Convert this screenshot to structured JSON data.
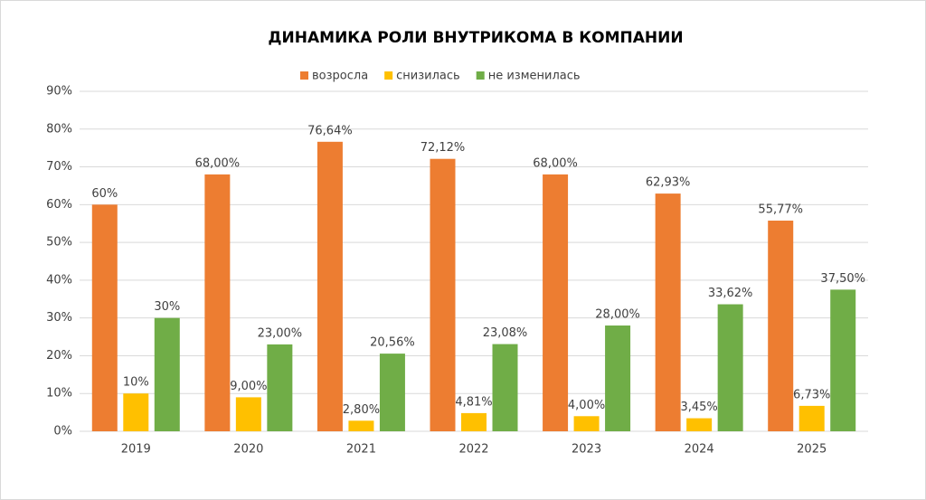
{
  "chart_data": {
    "type": "bar",
    "title": "ДИНАМИКА РОЛИ ВНУТРИКОМА В КОМПАНИИ",
    "categories": [
      "2019",
      "2020",
      "2021",
      "2022",
      "2023",
      "2024",
      "2025"
    ],
    "series": [
      {
        "name": "возросла",
        "color": "#ed7d31",
        "values": [
          60,
          68,
          76.64,
          72.12,
          68,
          62.93,
          55.77
        ],
        "value_labels": [
          "60%",
          "68,00%",
          "76,64%",
          "72,12%",
          "68,00%",
          "62,93%",
          "55,77%"
        ]
      },
      {
        "name": "снизилась",
        "color": "#ffc000",
        "values": [
          10,
          9,
          2.8,
          4.81,
          4,
          3.45,
          6.73
        ],
        "value_labels": [
          "10%",
          "9,00%",
          "2,80%",
          "4,81%",
          "4,00%",
          "3,45%",
          "6,73%"
        ]
      },
      {
        "name": "не изменилась",
        "color": "#70ad47",
        "values": [
          30,
          23,
          20.56,
          23.08,
          28,
          33.62,
          37.5
        ],
        "value_labels": [
          "30%",
          "23,00%",
          "20,56%",
          "23,08%",
          "28,00%",
          "33,62%",
          "37,50%"
        ]
      }
    ],
    "ylim": [
      0,
      90
    ],
    "yticks": [
      {
        "value": 0,
        "label": "0%"
      },
      {
        "value": 10,
        "label": "10%"
      },
      {
        "value": 20,
        "label": "20%"
      },
      {
        "value": 30,
        "label": "30%"
      },
      {
        "value": 40,
        "label": "40%"
      },
      {
        "value": 50,
        "label": "50%"
      },
      {
        "value": 60,
        "label": "60%"
      },
      {
        "value": 70,
        "label": "70%"
      },
      {
        "value": 80,
        "label": "80%"
      },
      {
        "value": 90,
        "label": "90%"
      }
    ],
    "grid": true,
    "legend": "top"
  }
}
